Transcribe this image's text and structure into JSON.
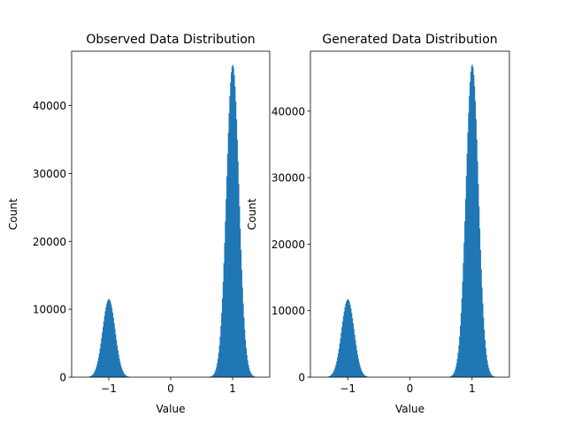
{
  "chart_data": [
    {
      "type": "bar",
      "title": "Observed Data Distribution",
      "xlabel": "Value",
      "ylabel": "Count",
      "xlim": [
        -1.6,
        1.6
      ],
      "ylim": [
        0,
        48000
      ],
      "xticks": [
        -1,
        0,
        1
      ],
      "yticks": [
        0,
        10000,
        20000,
        30000,
        40000
      ],
      "color": "#1f77b4",
      "peaks": [
        {
          "center": -1.0,
          "height": 11500,
          "sigma": 0.1
        },
        {
          "center": 1.0,
          "height": 46000,
          "sigma": 0.1
        }
      ]
    },
    {
      "type": "bar",
      "title": "Generated Data Distribution",
      "xlabel": "Value",
      "ylabel": "Count",
      "xlim": [
        -1.6,
        1.6
      ],
      "ylim": [
        0,
        49000
      ],
      "xticks": [
        -1,
        0,
        1
      ],
      "yticks": [
        0,
        10000,
        20000,
        30000,
        40000
      ],
      "color": "#1f77b4",
      "peaks": [
        {
          "center": -1.0,
          "height": 11700,
          "sigma": 0.1
        },
        {
          "center": 1.0,
          "height": 47000,
          "sigma": 0.1
        }
      ]
    }
  ]
}
